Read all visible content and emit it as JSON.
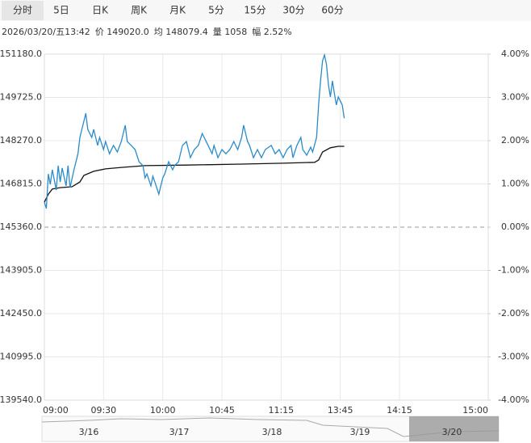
{
  "tabs": [
    "分时",
    "5日",
    "日K",
    "周K",
    "月K",
    "5分",
    "15分",
    "30分",
    "60分"
  ],
  "info": [
    "2026/03/20/五13:42",
    "价 149020.0",
    "均 148079.4",
    "量 1058",
    "幅 2.52%"
  ],
  "chart_data": {
    "type": "line",
    "xlim": [
      0,
      225
    ],
    "xticks": [
      {
        "value": 0,
        "label": "09:00"
      },
      {
        "value": 30,
        "label": "09:30"
      },
      {
        "value": 60,
        "label": "10:00"
      },
      {
        "value": 90,
        "label": "10:45"
      },
      {
        "value": 120,
        "label": "11:15"
      },
      {
        "value": 150,
        "label": "13:45"
      },
      {
        "value": 180,
        "label": "14:15"
      },
      {
        "value": 225,
        "label": "15:00"
      }
    ],
    "ylim": [
      139540,
      151180
    ],
    "yticks": [
      {
        "value": 151180,
        "label": "151180.0"
      },
      {
        "value": 149725,
        "label": "149725.0"
      },
      {
        "value": 148270,
        "label": "148270.0"
      },
      {
        "value": 146815,
        "label": "146815.0"
      },
      {
        "value": 145360,
        "label": "145360.0"
      },
      {
        "value": 143905,
        "label": "143905.0"
      },
      {
        "value": 142450,
        "label": "142450.0"
      },
      {
        "value": 140995,
        "label": "140995.0"
      },
      {
        "value": 139540,
        "label": "139540.0"
      }
    ],
    "y2lim": [
      -4,
      4
    ],
    "y2ticks": [
      {
        "value": 4,
        "label": "4.00%"
      },
      {
        "value": 3,
        "label": "3.00%"
      },
      {
        "value": 2,
        "label": "2.00%"
      },
      {
        "value": 1,
        "label": "1.00%"
      },
      {
        "value": 0,
        "label": "0.00%"
      },
      {
        "value": -1,
        "label": "-1.00%"
      },
      {
        "value": -2,
        "label": "-2.00%"
      },
      {
        "value": -3,
        "label": "-3.00%"
      },
      {
        "value": -4,
        "label": "-4.00%"
      }
    ],
    "grid": true,
    "up_color": "#e02020",
    "down_color": "#1aa01a",
    "price": {
      "color": "#2a8bc9",
      "x": [
        0,
        1,
        2,
        3,
        4,
        6,
        7,
        8,
        9,
        11,
        12,
        13,
        15,
        17,
        18,
        20,
        21,
        22,
        24,
        25,
        27,
        28,
        30,
        31,
        33,
        35,
        37,
        39,
        41,
        42,
        44,
        46,
        48,
        50,
        51,
        52,
        54,
        55,
        56,
        58,
        60,
        61,
        63,
        65,
        66,
        68,
        70,
        72,
        74,
        76,
        78,
        80,
        81,
        83,
        85,
        86,
        88,
        90,
        92,
        94,
        96,
        98,
        100,
        101,
        103,
        104,
        106,
        108,
        110,
        112,
        115,
        117,
        119,
        121,
        123,
        125,
        126,
        128,
        130,
        131,
        133,
        135,
        136,
        138,
        139,
        140,
        141,
        142,
        143,
        144,
        145,
        146,
        147,
        148,
        149,
        151,
        152
      ],
      "values": [
        146200,
        145990,
        147150,
        146800,
        147290,
        146610,
        147430,
        146880,
        147350,
        146750,
        147430,
        146690,
        147290,
        147830,
        148380,
        148920,
        149190,
        148650,
        148380,
        148650,
        148110,
        148380,
        147970,
        148240,
        147830,
        148110,
        147890,
        148240,
        148790,
        148240,
        148110,
        147970,
        147560,
        147430,
        147020,
        147150,
        146750,
        147070,
        146880,
        146470,
        147020,
        147150,
        147560,
        147290,
        147430,
        147560,
        148110,
        148240,
        147700,
        147970,
        148110,
        148510,
        148380,
        148110,
        147830,
        148110,
        147700,
        147970,
        147830,
        147970,
        148240,
        147970,
        148380,
        148790,
        148240,
        148110,
        147700,
        147970,
        147700,
        147970,
        148110,
        147830,
        147970,
        147700,
        147970,
        148110,
        147700,
        148110,
        148380,
        147970,
        147780,
        148050,
        147890,
        148380,
        149470,
        150280,
        150960,
        151150,
        150830,
        150150,
        149740,
        150280,
        149870,
        149470,
        149740,
        149470,
        149020
      ]
    },
    "average": {
      "color": "#111111",
      "x": [
        0,
        2,
        4,
        8,
        14,
        18,
        20,
        25,
        31,
        39,
        51,
        72,
        100,
        121,
        137,
        139,
        141,
        145,
        149,
        152
      ],
      "values": [
        146200,
        146470,
        146640,
        146690,
        146720,
        146880,
        147100,
        147240,
        147320,
        147370,
        147430,
        147450,
        147480,
        147510,
        147540,
        147620,
        147890,
        148030,
        148080,
        148079.4
      ]
    }
  },
  "navigator": {
    "dates": [
      "3/16",
      "3/17",
      "3/18",
      "3/19",
      "3/20"
    ]
  }
}
